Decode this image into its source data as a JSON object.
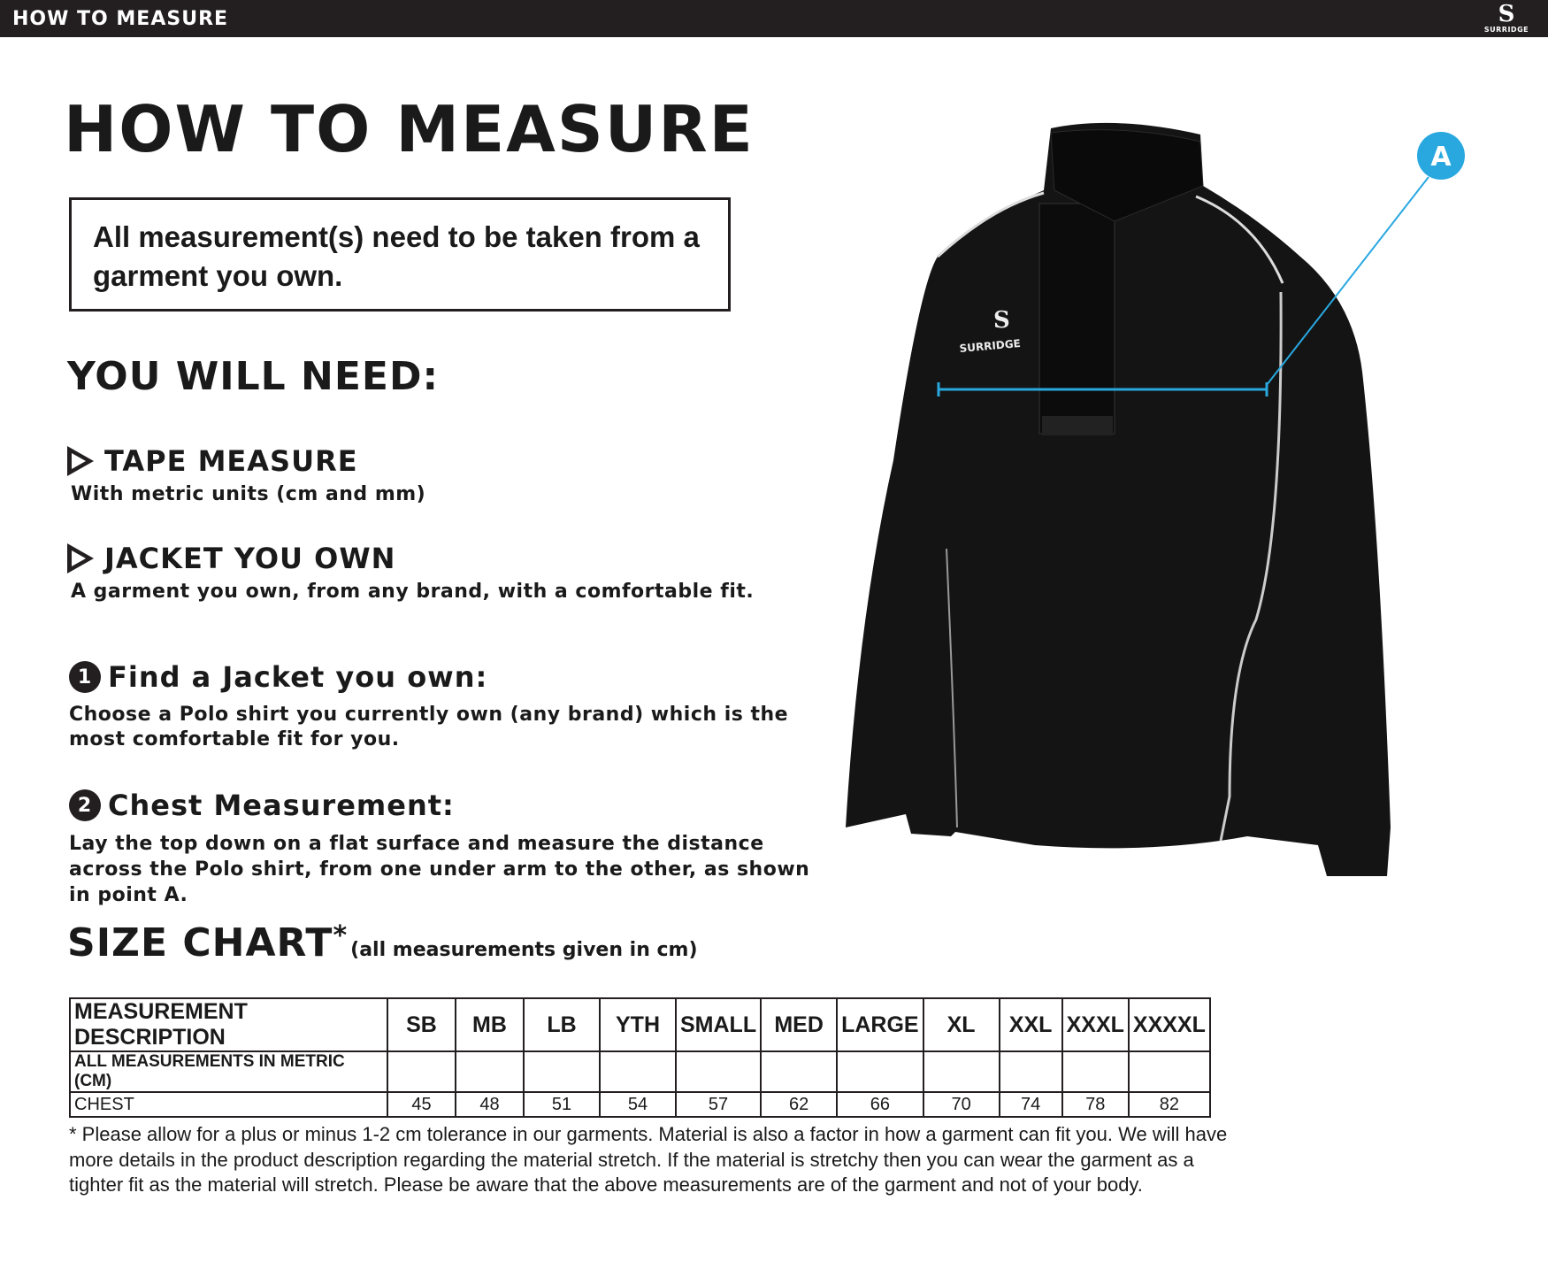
{
  "topbar": {
    "title": "HOW TO MEASURE",
    "logo": "SURRIDGE"
  },
  "title": "HOW TO MEASURE",
  "notice": "All measurement(s) need to be taken from a garment you own.",
  "need": {
    "heading": "YOU WILL NEED:",
    "items": [
      {
        "title": "TAPE MEASURE",
        "desc": "With metric units (cm and mm)"
      },
      {
        "title": "JACKET YOU OWN",
        "desc": "A garment you own, from any brand, with a comfortable fit."
      }
    ]
  },
  "steps": [
    {
      "num": "1",
      "title": "Find a Jacket you own:",
      "desc": "Choose a Polo shirt you currently own (any brand) which is the most comfortable fit for you."
    },
    {
      "num": "2",
      "title": "Chest Measurement:",
      "desc": "Lay the top down on a flat surface and measure the distance across the Polo shirt, from one under arm to the other, as shown in point A."
    }
  ],
  "image": {
    "point_label": "A",
    "logo_text": "SURRIDGE",
    "accent": "#29a8e0"
  },
  "size_chart": {
    "heading": "SIZE CHART",
    "asterisk": "*",
    "note": "(all measurements given in cm)",
    "header": [
      "MEASUREMENT DESCRIPTION",
      "SB",
      "MB",
      "LB",
      "YTH",
      "SMALL",
      "MED",
      "LARGE",
      "XL",
      "XXL",
      "XXXL",
      "XXXXL"
    ],
    "rows": [
      [
        "ALL MEASUREMENTS IN METRIC (CM)",
        "",
        "",
        "",
        "",
        "",
        "",
        "",
        "",
        "",
        "",
        ""
      ],
      [
        "CHEST",
        "45",
        "48",
        "51",
        "54",
        "57",
        "62",
        "66",
        "70",
        "74",
        "78",
        "82"
      ]
    ]
  },
  "footnote": "* Please allow for a plus or minus 1-2 cm tolerance in our garments. Material is also a factor in how a garment can fit you. We will have more details in the product description regarding the material stretch.  If the material is stretchy then you can wear the garment as a tighter fit as the material will stretch.  Please be aware that the above measurements are of the garment and not of your body."
}
